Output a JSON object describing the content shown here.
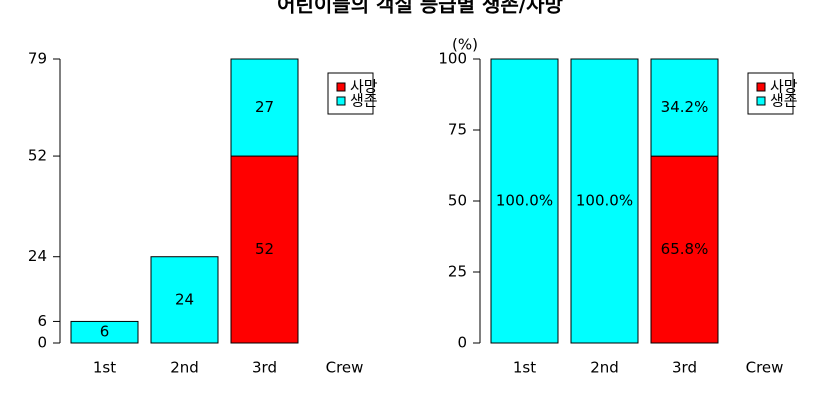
{
  "title": "어린이들의 객실 등급별 생존/사망",
  "chart_data": [
    {
      "type": "bar",
      "stacked": true,
      "categories": [
        "1st",
        "2nd",
        "3rd",
        "Crew"
      ],
      "series": [
        {
          "name": "사망",
          "color": "#ff0000",
          "values": [
            0,
            0,
            52,
            0
          ]
        },
        {
          "name": "생존",
          "color": "#00ffff",
          "values": [
            6,
            24,
            27,
            0
          ]
        }
      ],
      "ylim": [
        0,
        79
      ],
      "yticks": [
        0,
        6,
        24,
        52,
        79
      ],
      "legend": "top-right"
    },
    {
      "type": "bar",
      "stacked": true,
      "ylabel": "(%)",
      "categories": [
        "1st",
        "2nd",
        "3rd",
        "Crew"
      ],
      "series": [
        {
          "name": "사망",
          "color": "#ff0000",
          "values": [
            0,
            0,
            65.8,
            null
          ],
          "value_labels": [
            null,
            null,
            "65.8%",
            null
          ]
        },
        {
          "name": "생존",
          "color": "#00ffff",
          "values": [
            100,
            100,
            34.2,
            null
          ],
          "value_labels": [
            "100.0%",
            "100.0%",
            "34.2%",
            null
          ]
        }
      ],
      "ylim": [
        0,
        100
      ],
      "yticks": [
        0,
        25,
        50,
        75,
        100
      ],
      "legend": "top-right"
    }
  ]
}
